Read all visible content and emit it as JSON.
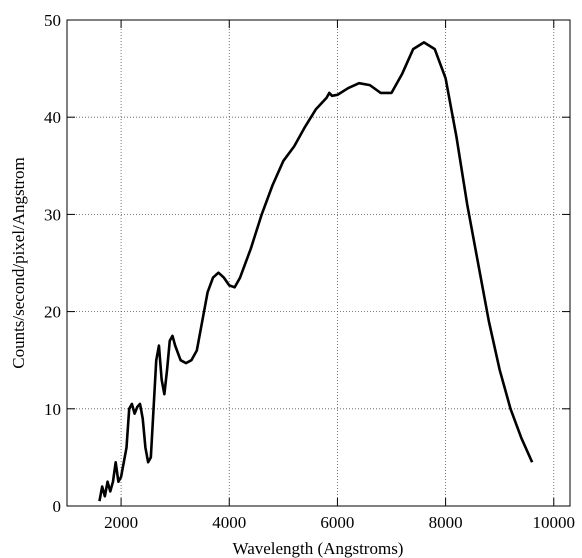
{
  "chart_data": {
    "type": "line",
    "xlabel": "Wavelength (Angstroms)",
    "ylabel": "Counts/second/pixel/Angstrom",
    "x": [
      1600,
      1650,
      1700,
      1750,
      1800,
      1850,
      1900,
      1950,
      2000,
      2100,
      2150,
      2200,
      2250,
      2300,
      2350,
      2400,
      2450,
      2500,
      2550,
      2600,
      2650,
      2700,
      2750,
      2800,
      2850,
      2900,
      2950,
      3000,
      3100,
      3200,
      3300,
      3400,
      3500,
      3600,
      3700,
      3800,
      3900,
      4000,
      4100,
      4200,
      4400,
      4600,
      4800,
      5000,
      5200,
      5400,
      5600,
      5800,
      5850,
      5900,
      6000,
      6200,
      6400,
      6600,
      6800,
      7000,
      7200,
      7400,
      7600,
      7800,
      8000,
      8200,
      8400,
      8600,
      8800,
      9000,
      9200,
      9400,
      9600
    ],
    "series": [
      {
        "color": "#000000",
        "values": [
          0.5,
          2,
          1,
          2.5,
          1.5,
          2.5,
          4.5,
          2.5,
          3,
          6,
          10,
          10.5,
          9.5,
          10.2,
          10.5,
          9,
          6,
          4.5,
          5,
          10,
          15,
          16.5,
          13,
          11.5,
          14,
          17,
          17.5,
          16.5,
          15,
          14.7,
          15,
          16,
          19,
          22,
          23.5,
          24,
          23.5,
          22.7,
          22.5,
          23.5,
          26.5,
          30,
          33,
          35.5,
          37,
          39,
          40.8,
          42,
          42.5,
          42.2,
          42.3,
          43,
          43.5,
          43.3,
          42.5,
          42.5,
          44.5,
          47,
          47.7,
          47,
          44,
          38,
          31,
          25,
          19,
          14,
          10,
          7,
          4.5
        ]
      }
    ],
    "xlim": [
      1000,
      10300
    ],
    "xticks": [
      2000,
      4000,
      6000,
      8000,
      10000
    ],
    "ylim": [
      0,
      50
    ],
    "yticks": [
      0,
      10,
      20,
      30,
      40,
      50
    ],
    "grid": true
  }
}
